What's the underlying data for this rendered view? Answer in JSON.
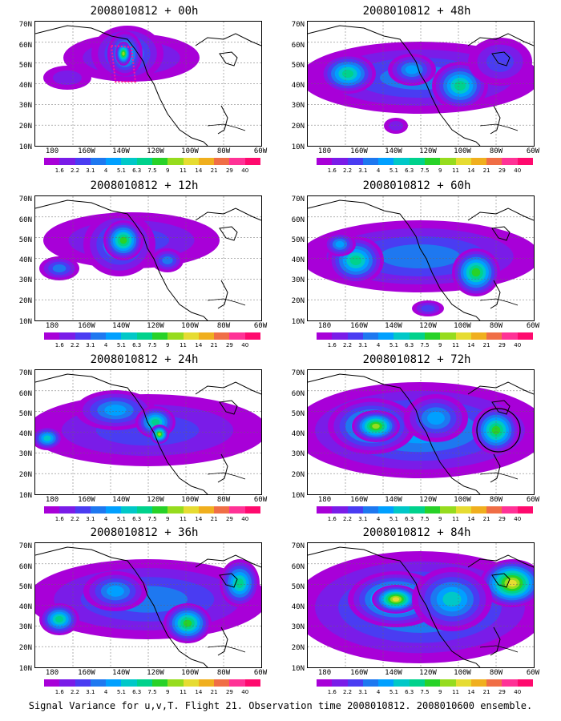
{
  "caption": "Signal Variance for u,v,T. Flight 21. Observation time 2008010812. 2008010600 ensemble.",
  "lat_labels": [
    "70N",
    "60N",
    "50N",
    "40N",
    "30N",
    "20N",
    "10N"
  ],
  "lon_labels": [
    "180",
    "160W",
    "140W",
    "120W",
    "100W",
    "80W",
    "60W"
  ],
  "colorbar": {
    "levels": [
      "1.6",
      "2.2",
      "3.1",
      "4",
      "5.1",
      "6.3",
      "7.5",
      "9",
      "11",
      "14",
      "21",
      "29",
      "40"
    ],
    "colors": [
      "#a800d8",
      "#7a1ce8",
      "#4a3cf2",
      "#1e78f0",
      "#00a0ff",
      "#00c8c8",
      "#00d28c",
      "#28d228",
      "#96dc1e",
      "#e6dc32",
      "#f0af1e",
      "#f06e46",
      "#ff3296",
      "#ff0a6e"
    ]
  },
  "panels": [
    {
      "title": "2008010812 + 00h",
      "lead_hours": 0
    },
    {
      "title": "2008010812 + 48h",
      "lead_hours": 48
    },
    {
      "title": "2008010812 + 12h",
      "lead_hours": 12
    },
    {
      "title": "2008010812 + 60h",
      "lead_hours": 60
    },
    {
      "title": "2008010812 + 24h",
      "lead_hours": 24
    },
    {
      "title": "2008010812 + 72h",
      "lead_hours": 72
    },
    {
      "title": "2008010812 + 36h",
      "lead_hours": 36
    },
    {
      "title": "2008010812 + 84h",
      "lead_hours": 84
    }
  ]
}
